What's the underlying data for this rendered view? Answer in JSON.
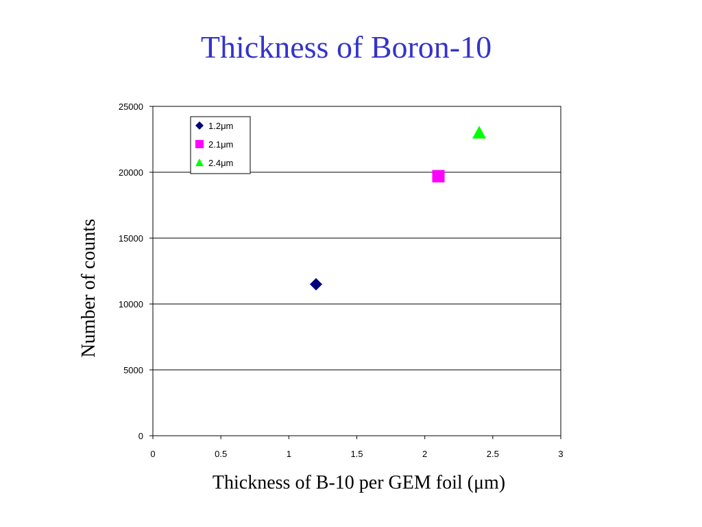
{
  "slide": {
    "title": "Thickness of Boron-10"
  },
  "chart_data": {
    "type": "scatter",
    "xlabel": "Thickness of B-10 per GEM foil (μm)",
    "ylabel": "Number of counts",
    "xlim": [
      0,
      3
    ],
    "ylim": [
      0,
      25000
    ],
    "xticks": [
      "0",
      "0.5",
      "1",
      "1.5",
      "2",
      "2.5",
      "3"
    ],
    "yticks": [
      "0",
      "5000",
      "10000",
      "15000",
      "20000",
      "25000"
    ],
    "grid": "horizontal",
    "legend_position": "top-left",
    "series": [
      {
        "name": "1.2μm",
        "marker": "diamond",
        "color": "#000080",
        "points": [
          {
            "x": 1.2,
            "y": 11500
          }
        ]
      },
      {
        "name": "2.1μm",
        "marker": "square",
        "color": "#ff00ff",
        "points": [
          {
            "x": 2.1,
            "y": 19700
          }
        ]
      },
      {
        "name": "2.4μm",
        "marker": "triangle",
        "color": "#00ff00",
        "points": [
          {
            "x": 2.4,
            "y": 23000
          }
        ]
      }
    ]
  }
}
